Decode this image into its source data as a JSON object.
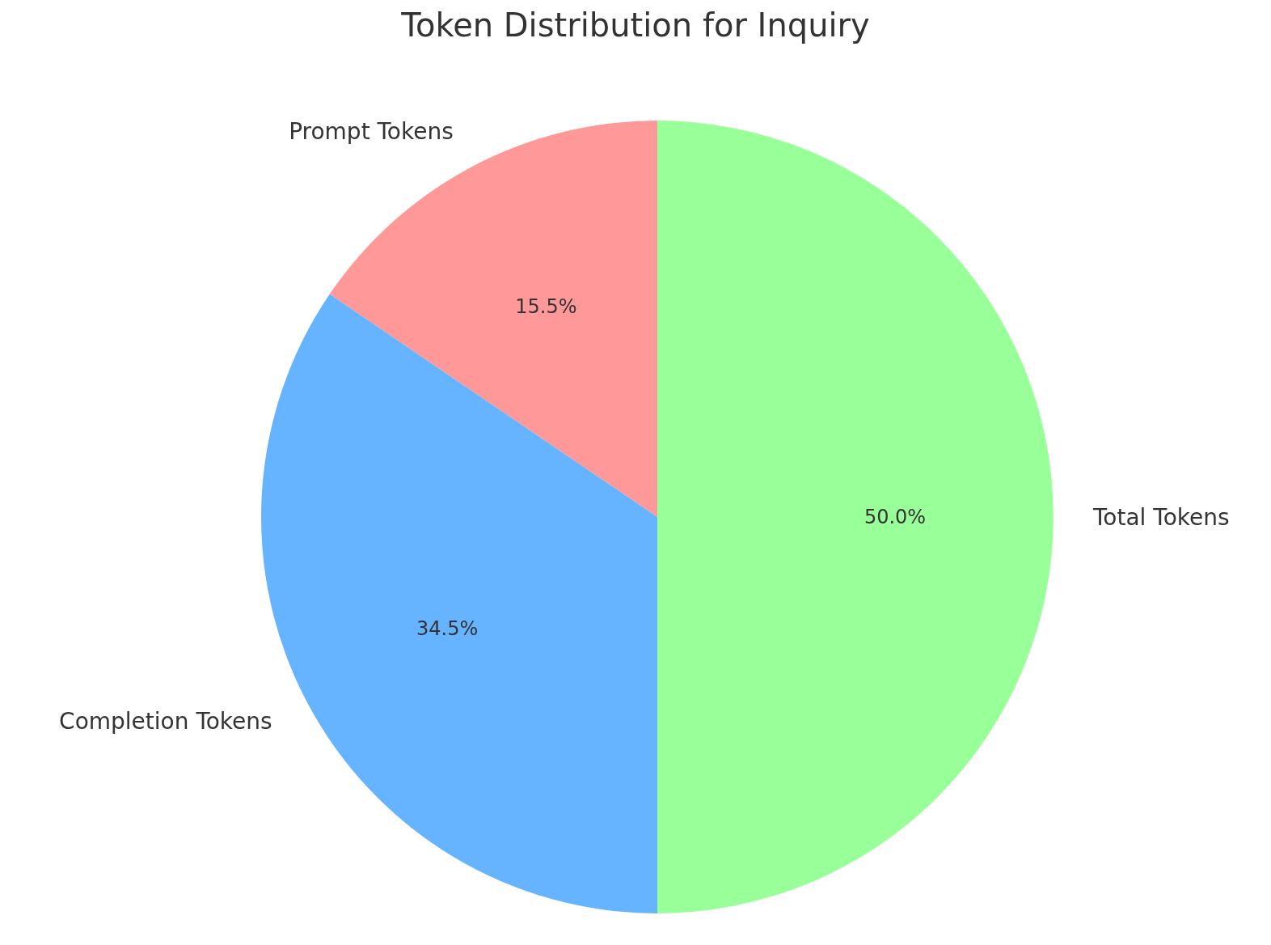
{
  "chart_data": {
    "type": "pie",
    "title": "Token Distribution for Inquiry",
    "categories": [
      "Prompt Tokens",
      "Completion Tokens",
      "Total Tokens"
    ],
    "values": [
      15.5,
      34.5,
      50.0
    ],
    "value_labels": [
      "15.5%",
      "34.5%",
      "50.0%"
    ],
    "colors": [
      "#ff9999",
      "#66b3ff",
      "#99ff99"
    ],
    "legend": false
  }
}
